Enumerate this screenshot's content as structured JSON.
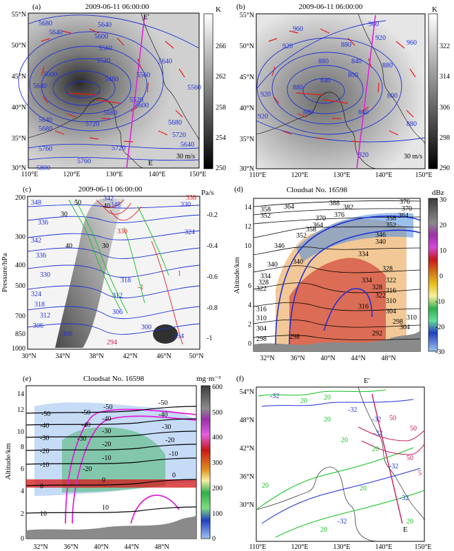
{
  "figure": {
    "panels": {
      "a": {
        "label": "(a)",
        "title": "2009-06-11 06:00:00",
        "unit": "K",
        "colorbar_ticks": [
          "266",
          "262",
          "258",
          "254",
          "250"
        ],
        "lat_ticks": [
          "55°N",
          "50°N",
          "45°N",
          "40°N",
          "35°N",
          "30°N"
        ],
        "lon_ticks": [
          "110°E",
          "120°E",
          "130°E",
          "140°E",
          "150°E"
        ],
        "contour_labels": [
          "5680",
          "5640",
          "5640",
          "5600",
          "5560",
          "5520",
          "5480",
          "5600",
          "5640",
          "5560",
          "5520",
          "5600",
          "5640",
          "5680",
          "5720",
          "5760",
          "5760",
          "5800",
          "5640",
          "5680",
          "5720",
          "5560",
          "5640",
          "5680",
          "5720"
        ],
        "section_start": "E'",
        "section_end": "E",
        "vector_label": "30 m/s"
      },
      "b": {
        "label": "(b)",
        "title": "2009-06-11 06:00:00",
        "unit": "K",
        "colorbar_ticks": [
          "322",
          "314",
          "306",
          "298",
          "290"
        ],
        "lat_ticks": [
          "55°N",
          "50°N",
          "45°N",
          "40°N",
          "35°N",
          "30°N"
        ],
        "lon_ticks": [
          "110°E",
          "120°E",
          "130°E",
          "140°E",
          "150°E"
        ],
        "contour_labels": [
          "960",
          "920",
          "880",
          "960",
          "920",
          "880",
          "840",
          "800",
          "880",
          "920",
          "880",
          "840",
          "920",
          "880",
          "840",
          "800",
          "880",
          "920",
          "960"
        ],
        "vector_label": "30 m/s"
      },
      "c": {
        "label": "(c)",
        "title": "2009-06-11 06:00:00",
        "unit": "Pa/s",
        "ylabel": "Pressure/hPa",
        "colorbar_ticks": [
          "-0.2",
          "-0.4",
          "-0.6",
          "-0.8",
          "-1"
        ],
        "y_ticks": [
          "200",
          "300",
          "400",
          "500",
          "700",
          "850",
          "1000"
        ],
        "x_ticks": [
          "30°N",
          "34°N",
          "38°N",
          "42°N",
          "46°N",
          "50°N"
        ],
        "contour_labels": [
          "348",
          "336",
          "342",
          "336",
          "330",
          "324",
          "318",
          "312",
          "306",
          "300",
          "30",
          "40",
          "50",
          "40",
          "30",
          "318",
          "312",
          "306",
          "300",
          "294",
          "1",
          "-1",
          "324",
          "330",
          "336",
          "342",
          "348",
          "330",
          "294"
        ]
      },
      "d": {
        "label": "(d)",
        "title": "Cloudsat No. 16598",
        "unit": "dBz",
        "ylabel": "Altitude/km",
        "colorbar_ticks": [
          "30",
          "20",
          "10",
          "0",
          "-10",
          "-20",
          "-30"
        ],
        "y_ticks": [
          "0",
          "2",
          "4",
          "6",
          "8",
          "10",
          "12",
          "14"
        ],
        "x_ticks": [
          "32°N",
          "36°N",
          "40°N",
          "44°N",
          "48°N"
        ],
        "contour_labels": [
          "364",
          "358",
          "352",
          "346",
          "340",
          "334",
          "328",
          "322",
          "316",
          "310",
          "304",
          "298",
          "388",
          "382",
          "376",
          "370",
          "364",
          "358",
          "352",
          "340",
          "334",
          "328",
          "322",
          "316",
          "310",
          "304",
          "298",
          "292",
          "376",
          "370",
          "364",
          "358",
          "352",
          "346",
          "340",
          "334",
          "328",
          "322",
          "316",
          "310",
          "304",
          "298"
        ]
      },
      "e": {
        "label": "(e)",
        "title": "Cloudsat No. 16598",
        "unit": "mg·m⁻³",
        "ylabel": "Altitude/km",
        "colorbar_ticks": [
          "600",
          "500",
          "400",
          "300",
          "200",
          "100",
          "0"
        ],
        "y_ticks": [
          "0",
          "2",
          "4",
          "6",
          "8",
          "10",
          "12",
          "14"
        ],
        "x_ticks": [
          "32°N",
          "36°N",
          "40°N",
          "44°N",
          "48°N"
        ],
        "contour_labels": [
          "-50",
          "-40",
          "-30",
          "-20",
          "-10",
          "0",
          "10",
          "-50",
          "-40",
          "-30",
          "-20",
          "-10",
          "0",
          "10",
          "-50",
          "-40",
          "-30",
          "-20",
          "-10",
          "0",
          "-20",
          "-30",
          "-40",
          "-50"
        ]
      },
      "f": {
        "label": "(f)",
        "lat_ticks": [
          "54°N",
          "48°N",
          "42°N",
          "36°N",
          "30°N"
        ],
        "lon_ticks": [
          "110°E",
          "120°E",
          "130°E",
          "140°E",
          "150°E"
        ],
        "contour_labels": [
          "-32",
          "20",
          "20",
          "-32",
          "20",
          "-32",
          "50",
          "50",
          "-32",
          "20",
          "20",
          "-32",
          "20",
          "-32",
          "50",
          "5",
          "20",
          "-32",
          "20",
          "20"
        ],
        "section_start": "E'",
        "section_end": "E"
      }
    },
    "colors": {
      "contour_blue": "#1f2fd6",
      "wind_red": "#e8191c",
      "section_magenta": "#e020d8",
      "green": "#10c020",
      "magenta_cloud": "#d432d4",
      "crimson": "#c8185a"
    }
  }
}
